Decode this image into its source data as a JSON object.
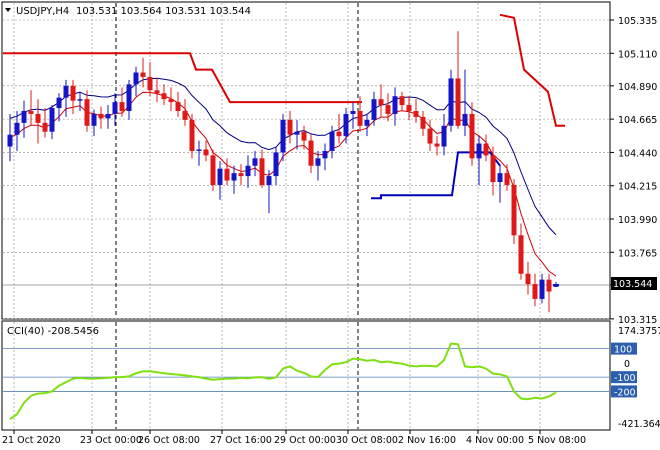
{
  "header": {
    "symbol_label": "USDJPY,H4",
    "ohlc_label": "103.531 103.564 103.531 103.544"
  },
  "indicator": {
    "label": "CCI(40) -208.5456",
    "scale_top_label": "174.3757",
    "scale_bottom_label": "-421.364",
    "levels": [
      {
        "label": "100",
        "value": 100
      },
      {
        "label": "0",
        "value": 0
      },
      {
        "label": "-100",
        "value": -100
      },
      {
        "label": "-200",
        "value": -200
      }
    ]
  },
  "current_price_label": "103.544",
  "colors": {
    "bull": "#1515c8",
    "bear": "#e01818",
    "envelope_upper": "#000080",
    "envelope_lower": "#cc0000",
    "channel_red": "#dd0000",
    "channel_blue": "#0000bb",
    "cci_line": "#7fe010",
    "level_box": "#2c5fae",
    "grid": "#8c8c8c"
  },
  "chart_data": {
    "type": "candlestick",
    "symbol": "USDJPY",
    "timeframe": "H4",
    "price_axis_ticks": [
      "105.335",
      "105.110",
      "104.890",
      "104.665",
      "104.440",
      "104.215",
      "103.990",
      "103.765",
      "103.544",
      "103.315"
    ],
    "ylim": [
      103.3,
      105.43
    ],
    "time_axis_labels": [
      "21 Oct 2020",
      "23 Oct 00:00",
      "26 Oct 08:00",
      "27 Oct 16:00",
      "29 Oct 00:00",
      "30 Oct 08:00",
      "2 Nov 16:00",
      "4 Nov 00:00",
      "5 Nov 08:00"
    ],
    "candles": [
      [
        104.48,
        104.7,
        104.38,
        104.56
      ],
      [
        104.56,
        104.72,
        104.45,
        104.64
      ],
      [
        104.64,
        104.79,
        104.54,
        104.72
      ],
      [
        104.72,
        104.86,
        104.62,
        104.7
      ],
      [
        104.7,
        104.8,
        104.5,
        104.64
      ],
      [
        104.64,
        104.74,
        104.54,
        104.58
      ],
      [
        104.58,
        104.76,
        104.53,
        104.74
      ],
      [
        104.74,
        104.84,
        104.65,
        104.81
      ],
      [
        104.81,
        104.93,
        104.68,
        104.89
      ],
      [
        104.89,
        104.93,
        104.7,
        104.79
      ],
      [
        104.79,
        104.85,
        104.72,
        104.8
      ],
      [
        104.8,
        104.86,
        104.58,
        104.62
      ],
      [
        104.62,
        104.73,
        104.55,
        104.7
      ],
      [
        104.7,
        104.75,
        104.6,
        104.67
      ],
      [
        104.67,
        104.76,
        104.6,
        104.7
      ],
      [
        104.7,
        104.84,
        104.62,
        104.78
      ],
      [
        104.78,
        104.88,
        104.68,
        104.72
      ],
      [
        104.72,
        104.93,
        104.66,
        104.9
      ],
      [
        104.9,
        105.02,
        104.82,
        104.98
      ],
      [
        104.98,
        105.08,
        104.88,
        104.95
      ],
      [
        104.95,
        105.05,
        104.82,
        104.86
      ],
      [
        104.86,
        104.94,
        104.78,
        104.84
      ],
      [
        104.84,
        104.9,
        104.76,
        104.8
      ],
      [
        104.8,
        104.88,
        104.72,
        104.78
      ],
      [
        104.78,
        104.85,
        104.68,
        104.72
      ],
      [
        104.72,
        104.8,
        104.62,
        104.66
      ],
      [
        104.66,
        104.7,
        104.4,
        104.45
      ],
      [
        104.45,
        104.52,
        104.35,
        104.46
      ],
      [
        104.46,
        104.52,
        104.38,
        104.42
      ],
      [
        104.42,
        104.46,
        104.18,
        104.22
      ],
      [
        104.22,
        104.38,
        104.12,
        104.33
      ],
      [
        104.33,
        104.4,
        104.22,
        104.25
      ],
      [
        104.25,
        104.35,
        104.16,
        104.3
      ],
      [
        104.3,
        104.36,
        104.22,
        104.28
      ],
      [
        104.28,
        104.42,
        104.2,
        104.35
      ],
      [
        104.35,
        104.45,
        104.28,
        104.4
      ],
      [
        104.4,
        104.46,
        104.2,
        104.22
      ],
      [
        104.22,
        104.32,
        104.03,
        104.28
      ],
      [
        104.28,
        104.48,
        104.22,
        104.44
      ],
      [
        104.44,
        104.7,
        104.38,
        104.66
      ],
      [
        104.66,
        104.72,
        104.5,
        104.56
      ],
      [
        104.56,
        104.66,
        104.46,
        104.58
      ],
      [
        104.58,
        104.62,
        104.46,
        104.52
      ],
      [
        104.52,
        104.56,
        104.3,
        104.35
      ],
      [
        104.35,
        104.45,
        104.25,
        104.4
      ],
      [
        104.4,
        104.5,
        104.32,
        104.45
      ],
      [
        104.45,
        104.62,
        104.4,
        104.58
      ],
      [
        104.58,
        104.7,
        104.5,
        104.55
      ],
      [
        104.55,
        104.74,
        104.5,
        104.7
      ],
      [
        104.7,
        104.78,
        104.6,
        104.72
      ],
      [
        104.72,
        104.82,
        104.58,
        104.62
      ],
      [
        104.62,
        104.7,
        104.55,
        104.66
      ],
      [
        104.66,
        104.85,
        104.62,
        104.8
      ],
      [
        104.8,
        104.9,
        104.68,
        104.76
      ],
      [
        104.76,
        104.84,
        104.65,
        104.7
      ],
      [
        104.7,
        104.88,
        104.62,
        104.82
      ],
      [
        104.82,
        104.85,
        104.72,
        104.76
      ],
      [
        104.76,
        104.82,
        104.66,
        104.72
      ],
      [
        104.72,
        104.8,
        104.64,
        104.68
      ],
      [
        104.68,
        104.72,
        104.55,
        104.6
      ],
      [
        104.6,
        104.66,
        104.45,
        104.5
      ],
      [
        104.5,
        104.55,
        104.42,
        104.48
      ],
      [
        104.48,
        104.7,
        104.42,
        104.62
      ],
      [
        104.62,
        105.0,
        104.58,
        104.94
      ],
      [
        104.94,
        105.26,
        104.6,
        104.62
      ],
      [
        104.62,
        105.0,
        104.55,
        104.7
      ],
      [
        104.7,
        104.78,
        104.35,
        104.4
      ],
      [
        104.4,
        104.55,
        104.22,
        104.5
      ],
      [
        104.5,
        104.56,
        104.38,
        104.42
      ],
      [
        104.42,
        104.48,
        104.15,
        104.24
      ],
      [
        104.24,
        104.36,
        104.1,
        104.3
      ],
      [
        104.3,
        104.36,
        104.18,
        104.22
      ],
      [
        104.22,
        104.26,
        103.82,
        103.88
      ],
      [
        103.88,
        103.96,
        103.58,
        103.62
      ],
      [
        103.62,
        103.7,
        103.48,
        103.55
      ],
      [
        103.55,
        103.62,
        103.4,
        103.45
      ],
      [
        103.45,
        103.62,
        103.42,
        103.58
      ],
      [
        103.58,
        103.62,
        103.36,
        103.5
      ],
      [
        103.531,
        103.564,
        103.531,
        103.544
      ]
    ],
    "cci_values": [
      -395,
      -360,
      -280,
      -230,
      -215,
      -212,
      -200,
      -160,
      -135,
      -110,
      -105,
      -110,
      -110,
      -108,
      -105,
      -100,
      -100,
      -95,
      -72,
      -60,
      -58,
      -65,
      -72,
      -78,
      -82,
      -88,
      -95,
      -100,
      -110,
      -118,
      -114,
      -110,
      -110,
      -105,
      -108,
      -102,
      -100,
      -112,
      -102,
      -40,
      -25,
      -55,
      -70,
      -95,
      -100,
      -50,
      -10,
      -5,
      5,
      30,
      25,
      15,
      20,
      5,
      10,
      0,
      -5,
      -20,
      -25,
      -20,
      -22,
      -25,
      20,
      135,
      130,
      -25,
      -30,
      -25,
      -40,
      -75,
      -80,
      -95,
      -200,
      -250,
      -255,
      -245,
      -250,
      -235,
      -208
    ]
  }
}
